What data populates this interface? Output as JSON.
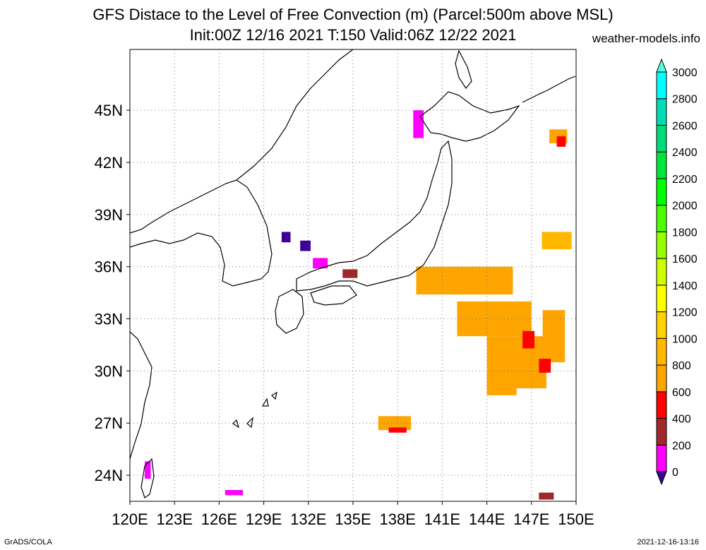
{
  "title_line1": "GFS Distace to the Level of Free Convection (m) (Parcel:500m above MSL)",
  "title_line2": "Init:00Z 12/16 2021 T:150 Valid:06Z 12/22 2021",
  "site": "weather-models.info",
  "footer_left": "GrADS/COLA",
  "footer_right": "2021-12-16-13:16",
  "map": {
    "lon_range": [
      120,
      150
    ],
    "lat_range": [
      22.5,
      48.5
    ],
    "lon_ticks": [
      "120E",
      "123E",
      "126E",
      "129E",
      "132E",
      "135E",
      "138E",
      "141E",
      "144E",
      "147E",
      "150E"
    ],
    "lat_ticks": [
      "24N",
      "27N",
      "30N",
      "33N",
      "36N",
      "39N",
      "42N",
      "45N"
    ],
    "gridlines": true
  },
  "colorbar": {
    "labels": [
      "0",
      "200",
      "400",
      "600",
      "800",
      "1000",
      "1200",
      "1400",
      "1600",
      "1800",
      "2000",
      "2200",
      "2400",
      "2600",
      "2800",
      "3000"
    ],
    "colors": [
      "#3c0096",
      "#ff00ff",
      "#a0282d",
      "#ff0000",
      "#ffa500",
      "#ffb700",
      "#ffd200",
      "#ffff00",
      "#cdff00",
      "#96ff00",
      "#4bff00",
      "#00ff00",
      "#00e63c",
      "#00dc78",
      "#00dcb4",
      "#00ffff",
      "#50ffdc"
    ]
  },
  "fields": [
    {
      "lat": 35.2,
      "lon": 142.5,
      "w": 6.5,
      "h": 1.6,
      "color": "#ffa500"
    },
    {
      "lat": 33.0,
      "lon": 144.5,
      "w": 5.0,
      "h": 2.0,
      "color": "#ffa500"
    },
    {
      "lat": 30.5,
      "lon": 146.0,
      "w": 4.0,
      "h": 3.0,
      "color": "#ffa500"
    },
    {
      "lat": 32.0,
      "lon": 148.5,
      "w": 1.5,
      "h": 3.0,
      "color": "#ffa500"
    },
    {
      "lat": 29.3,
      "lon": 145.0,
      "w": 2.0,
      "h": 1.4,
      "color": "#ffa500"
    },
    {
      "lat": 27.0,
      "lon": 137.8,
      "w": 2.2,
      "h": 0.8,
      "color": "#ffa500"
    },
    {
      "lat": 37.5,
      "lon": 148.7,
      "w": 2.0,
      "h": 1.0,
      "color": "#ffb700"
    },
    {
      "lat": 43.5,
      "lon": 148.8,
      "w": 1.2,
      "h": 0.8,
      "color": "#ffa500"
    },
    {
      "lat": 44.2,
      "lon": 139.4,
      "w": 0.7,
      "h": 1.6,
      "color": "#ff00ff"
    },
    {
      "lat": 37.2,
      "lon": 131.8,
      "w": 0.7,
      "h": 0.6,
      "color": "#3c0096"
    },
    {
      "lat": 36.2,
      "lon": 132.8,
      "w": 1.0,
      "h": 0.6,
      "color": "#ff00ff"
    },
    {
      "lat": 37.7,
      "lon": 130.5,
      "w": 0.6,
      "h": 0.6,
      "color": "#3c0096"
    },
    {
      "lat": 35.6,
      "lon": 134.8,
      "w": 1.0,
      "h": 0.5,
      "color": "#a0282d"
    },
    {
      "lat": 31.8,
      "lon": 146.8,
      "w": 0.8,
      "h": 1.0,
      "color": "#ff0000"
    },
    {
      "lat": 30.3,
      "lon": 147.9,
      "w": 0.8,
      "h": 0.8,
      "color": "#ff0000"
    },
    {
      "lat": 26.6,
      "lon": 138.0,
      "w": 1.2,
      "h": 0.3,
      "color": "#ff0000"
    },
    {
      "lat": 43.2,
      "lon": 149.0,
      "w": 0.6,
      "h": 0.6,
      "color": "#ff0000"
    },
    {
      "lat": 24.3,
      "lon": 121.2,
      "w": 0.4,
      "h": 1.0,
      "color": "#ff00ff"
    },
    {
      "lat": 23.0,
      "lon": 127.0,
      "w": 1.2,
      "h": 0.3,
      "color": "#ff00ff"
    },
    {
      "lat": 22.8,
      "lon": 148.0,
      "w": 1.0,
      "h": 0.4,
      "color": "#a0282d"
    }
  ]
}
